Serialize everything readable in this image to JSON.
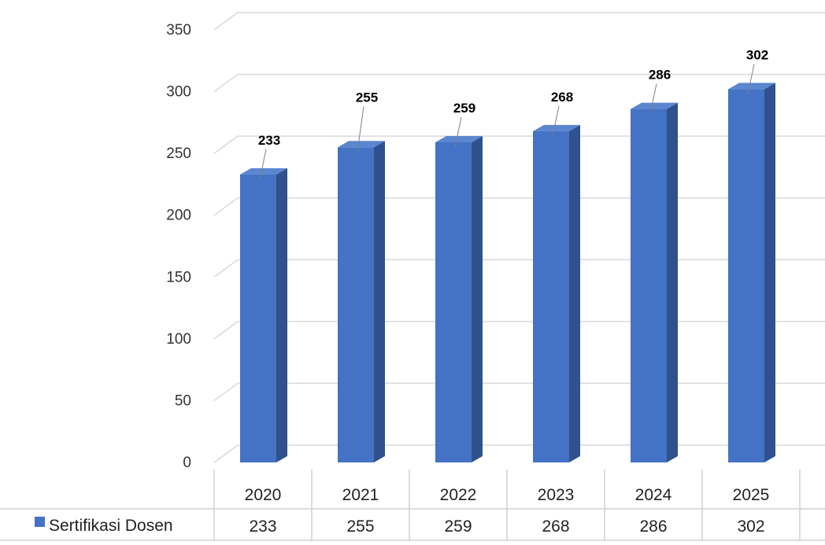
{
  "chart_data": {
    "type": "bar",
    "categories": [
      "2020",
      "2021",
      "2022",
      "2023",
      "2024",
      "2025"
    ],
    "series": [
      {
        "name": "Sertifikasi Dosen",
        "values": [
          233,
          255,
          259,
          268,
          286,
          302
        ]
      }
    ],
    "ylim": [
      0,
      350
    ],
    "yticks": [
      0,
      50,
      100,
      150,
      200,
      250,
      300,
      350
    ],
    "title": "",
    "xlabel": "",
    "ylabel": "",
    "grid": true,
    "legend": "data-table-left",
    "colors": {
      "bar_front": "#4472C4",
      "bar_side": "#2F528F",
      "bar_top": "#5B86D0"
    },
    "data_table": true
  }
}
